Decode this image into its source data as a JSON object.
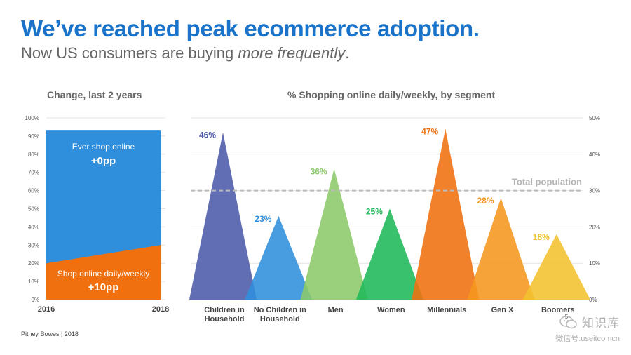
{
  "header": {
    "title": "We’ve reached peak ecommerce adoption.",
    "subtitle_prefix": "Now US consumers are buying ",
    "subtitle_emphasis": "more frequently",
    "subtitle_suffix": "."
  },
  "footer": {
    "text": "Pitney Bowes | 2018",
    "page": "5"
  },
  "watermark": {
    "logo": "知识库",
    "id": "微信号:useitcomcn"
  },
  "colors": {
    "title": "#1a73c8",
    "ever_area": "#2f8fdc",
    "daily_area": "#f0700f",
    "reference_line": "#bbbbbb"
  },
  "chart_data": [
    {
      "type": "area",
      "title": "Change, last 2 years",
      "x": [
        "2016",
        "2018"
      ],
      "yticks": [
        "0%",
        "10%",
        "20%",
        "30%",
        "40%",
        "50%",
        "60%",
        "70%",
        "80%",
        "90%",
        "100%"
      ],
      "ylim": [
        0,
        100
      ],
      "series": [
        {
          "name": "Ever shop online",
          "values": [
            93,
            93
          ],
          "color": "#2f8fdc",
          "annotation": "+0pp"
        },
        {
          "name": "Shop online daily/weekly",
          "values": [
            20,
            30
          ],
          "color": "#f0700f",
          "annotation": "+10pp"
        }
      ],
      "grid": true
    },
    {
      "type": "bar",
      "title": "% Shopping online daily/weekly, by segment",
      "categories": [
        "Children in Household",
        "No Children in Household",
        "Men",
        "Women",
        "Millennials",
        "Gen X",
        "Boomers"
      ],
      "values": [
        46,
        23,
        36,
        25,
        47,
        28,
        18
      ],
      "labels": [
        "46%",
        "23%",
        "36%",
        "25%",
        "47%",
        "28%",
        "18%"
      ],
      "colors": [
        "#4c5aa8",
        "#2f8fdc",
        "#8cc96a",
        "#1fb85a",
        "#f0700f",
        "#f5961e",
        "#f2c12e"
      ],
      "yticks": [
        "0%",
        "10%",
        "20%",
        "30%",
        "40%",
        "50%"
      ],
      "ylim": [
        0,
        50
      ],
      "reference_line": {
        "label": "Total population",
        "value": 30
      },
      "grid": true
    }
  ]
}
